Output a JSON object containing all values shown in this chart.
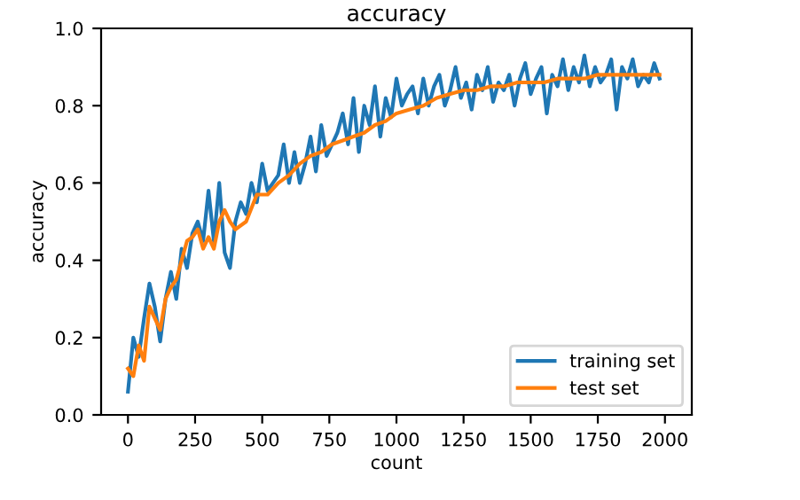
{
  "chart_data": {
    "type": "line",
    "title": "accuracy",
    "xlabel": "count",
    "ylabel": "accuracy",
    "xlim": [
      -100,
      2100
    ],
    "ylim": [
      0,
      1.0
    ],
    "xticks": [
      0,
      250,
      500,
      750,
      1000,
      1250,
      1500,
      1750,
      2000
    ],
    "yticks": [
      {
        "value": 0,
        "label": "0.0"
      },
      0.2,
      0.4,
      0.6,
      0.8,
      {
        "value": 1,
        "label": "1.0"
      }
    ],
    "grid": false,
    "legend": "bottom right",
    "marker": "none",
    "line_style": "solid",
    "series": [
      {
        "name": "training set",
        "color": "#1f77b4",
        "x": [
          0,
          20,
          40,
          60,
          80,
          100,
          120,
          140,
          160,
          180,
          200,
          220,
          240,
          260,
          280,
          300,
          320,
          340,
          360,
          380,
          400,
          420,
          440,
          460,
          480,
          500,
          520,
          540,
          560,
          580,
          600,
          620,
          640,
          660,
          680,
          700,
          720,
          740,
          760,
          780,
          800,
          820,
          840,
          860,
          880,
          900,
          920,
          940,
          960,
          980,
          1000,
          1020,
          1040,
          1060,
          1080,
          1100,
          1120,
          1140,
          1160,
          1180,
          1200,
          1220,
          1240,
          1260,
          1280,
          1300,
          1320,
          1340,
          1360,
          1380,
          1400,
          1420,
          1440,
          1460,
          1480,
          1500,
          1520,
          1540,
          1560,
          1580,
          1600,
          1620,
          1640,
          1660,
          1680,
          1700,
          1720,
          1740,
          1760,
          1780,
          1800,
          1820,
          1840,
          1860,
          1880,
          1900,
          1920,
          1940,
          1960,
          1980
        ],
        "values": [
          0.06,
          0.2,
          0.15,
          0.25,
          0.34,
          0.28,
          0.19,
          0.3,
          0.37,
          0.3,
          0.43,
          0.38,
          0.47,
          0.5,
          0.45,
          0.58,
          0.45,
          0.6,
          0.42,
          0.38,
          0.5,
          0.55,
          0.52,
          0.6,
          0.55,
          0.65,
          0.58,
          0.6,
          0.62,
          0.7,
          0.6,
          0.68,
          0.6,
          0.65,
          0.72,
          0.63,
          0.75,
          0.67,
          0.7,
          0.73,
          0.78,
          0.7,
          0.82,
          0.68,
          0.8,
          0.75,
          0.85,
          0.72,
          0.82,
          0.77,
          0.87,
          0.8,
          0.83,
          0.85,
          0.78,
          0.87,
          0.8,
          0.85,
          0.88,
          0.8,
          0.84,
          0.9,
          0.82,
          0.86,
          0.79,
          0.88,
          0.84,
          0.9,
          0.81,
          0.86,
          0.84,
          0.88,
          0.8,
          0.87,
          0.91,
          0.83,
          0.87,
          0.9,
          0.78,
          0.88,
          0.85,
          0.92,
          0.84,
          0.9,
          0.86,
          0.93,
          0.85,
          0.9,
          0.86,
          0.88,
          0.92,
          0.79,
          0.9,
          0.87,
          0.92,
          0.85,
          0.88,
          0.86,
          0.91,
          0.87
        ]
      },
      {
        "name": "test set",
        "color": "#ff7f0e",
        "x": [
          0,
          20,
          40,
          60,
          80,
          100,
          120,
          140,
          160,
          180,
          200,
          220,
          240,
          260,
          280,
          300,
          320,
          340,
          360,
          380,
          400,
          440,
          480,
          520,
          560,
          600,
          640,
          680,
          720,
          760,
          800,
          840,
          880,
          920,
          960,
          1000,
          1050,
          1100,
          1150,
          1200,
          1250,
          1300,
          1350,
          1400,
          1450,
          1500,
          1550,
          1600,
          1650,
          1700,
          1750,
          1800,
          1850,
          1900,
          1980
        ],
        "values": [
          0.12,
          0.1,
          0.18,
          0.14,
          0.28,
          0.25,
          0.22,
          0.3,
          0.33,
          0.35,
          0.4,
          0.45,
          0.46,
          0.48,
          0.43,
          0.46,
          0.43,
          0.5,
          0.53,
          0.5,
          0.48,
          0.5,
          0.57,
          0.57,
          0.6,
          0.62,
          0.65,
          0.67,
          0.68,
          0.7,
          0.71,
          0.72,
          0.73,
          0.75,
          0.76,
          0.78,
          0.79,
          0.8,
          0.82,
          0.83,
          0.84,
          0.84,
          0.85,
          0.85,
          0.86,
          0.86,
          0.86,
          0.87,
          0.87,
          0.87,
          0.88,
          0.88,
          0.88,
          0.88,
          0.88
        ]
      }
    ]
  }
}
